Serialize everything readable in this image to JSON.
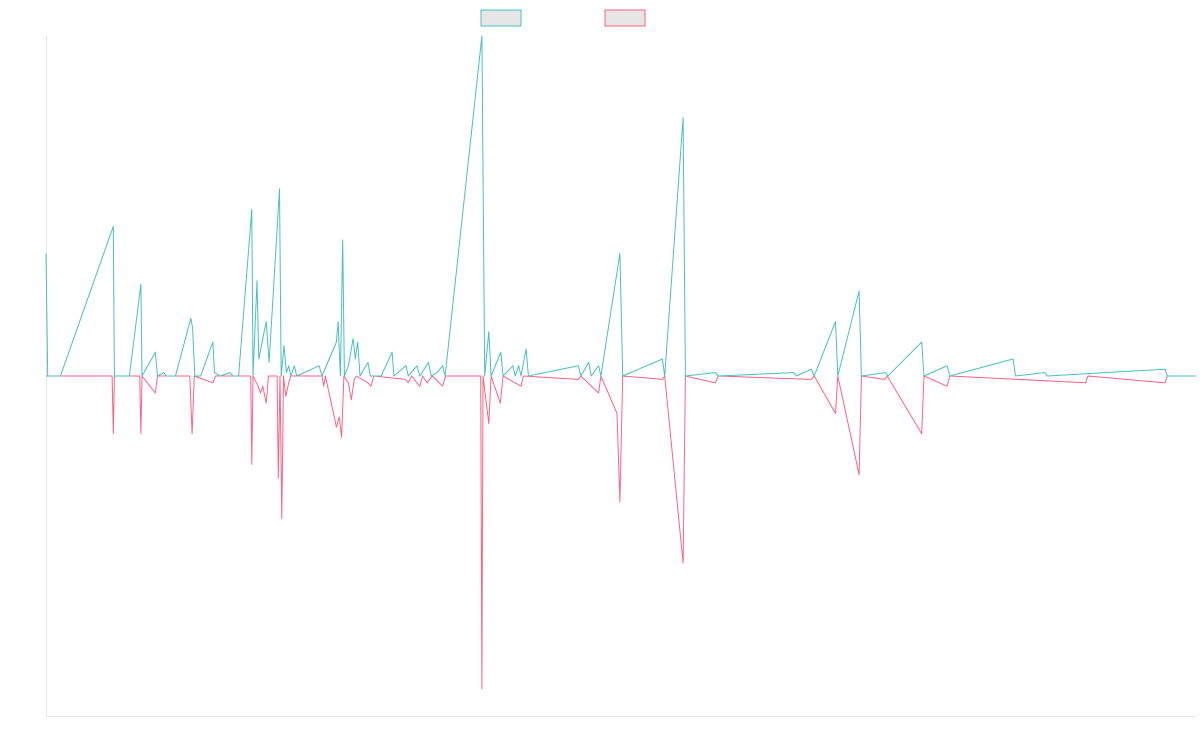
{
  "chart_data": {
    "type": "line",
    "title": "",
    "xlabel": "",
    "ylabel": "",
    "grid": false,
    "legend_placement": "top-center",
    "x_range": [
      0,
      200
    ],
    "ylim": [
      -1,
      1
    ],
    "colors": {
      "series_a": "#4bc0c0",
      "series_b": "#ff6384",
      "legend_fill": "#e6e6e6",
      "axis": "#e6e6e6"
    },
    "series": [
      {
        "points": [
          [
            0,
            0.36
          ],
          [
            0.3,
            0
          ],
          [
            2.5,
            0
          ],
          [
            11.7,
            0.44
          ],
          [
            11.9,
            0
          ],
          [
            14.5,
            0
          ],
          [
            16.5,
            0.27
          ],
          [
            16.7,
            0
          ],
          [
            19,
            0.07
          ],
          [
            19.4,
            0
          ],
          [
            20.5,
            0.01
          ],
          [
            20.9,
            0
          ],
          [
            22.5,
            0
          ],
          [
            25.2,
            0.17
          ],
          [
            25.5,
            0.14
          ],
          [
            25.9,
            0
          ],
          [
            26.9,
            0
          ],
          [
            29,
            0.1
          ],
          [
            29.3,
            0.01
          ],
          [
            30.3,
            0
          ],
          [
            32,
            0.01
          ],
          [
            32.5,
            0
          ],
          [
            33.5,
            0
          ],
          [
            35.8,
            0.49
          ],
          [
            36,
            0
          ],
          [
            36.7,
            0.28
          ],
          [
            37,
            0.05
          ],
          [
            37.7,
            0.11
          ],
          [
            38.3,
            0.16
          ],
          [
            38.8,
            0.04
          ],
          [
            40.6,
            0.55
          ],
          [
            40.9,
            0
          ],
          [
            41.4,
            0.09
          ],
          [
            41.8,
            0.01
          ],
          [
            42.2,
            0.03
          ],
          [
            42.6,
            0
          ],
          [
            43.2,
            0.03
          ],
          [
            43.6,
            0
          ],
          [
            47.5,
            0.03
          ],
          [
            48,
            0
          ],
          [
            50.5,
            0.1
          ],
          [
            50.8,
            0.16
          ],
          [
            51.2,
            0
          ],
          [
            51.6,
            0.4
          ],
          [
            51.9,
            0
          ],
          [
            52.6,
            0.03
          ],
          [
            53.4,
            0.11
          ],
          [
            53.8,
            0.05
          ],
          [
            54.2,
            0.1
          ],
          [
            54.6,
            0
          ],
          [
            56,
            0.04
          ],
          [
            56.4,
            0
          ],
          [
            58.3,
            0
          ],
          [
            60.2,
            0.07
          ],
          [
            60.5,
            0
          ],
          [
            62.6,
            0.03
          ],
          [
            63,
            0
          ],
          [
            64.5,
            0.03
          ],
          [
            65,
            0
          ],
          [
            66.5,
            0.04
          ],
          [
            67,
            0
          ],
          [
            68,
            0.01
          ],
          [
            69,
            0.03
          ],
          [
            69.4,
            0
          ],
          [
            75.8,
            1
          ],
          [
            76.3,
            0
          ],
          [
            77,
            0.13
          ],
          [
            77.4,
            0
          ],
          [
            79.1,
            0.07
          ],
          [
            79.5,
            0
          ],
          [
            81.2,
            0.03
          ],
          [
            81.6,
            0
          ],
          [
            82.2,
            0.03
          ],
          [
            82.6,
            0
          ],
          [
            83.5,
            0.08
          ],
          [
            83.9,
            0
          ],
          [
            92.6,
            0.03
          ],
          [
            93,
            0
          ],
          [
            94.4,
            0.04
          ],
          [
            94.8,
            0
          ],
          [
            96.1,
            0.03
          ],
          [
            96.5,
            0
          ],
          [
            99.8,
            0.36
          ],
          [
            100.3,
            0
          ],
          [
            107.2,
            0.05
          ],
          [
            107.6,
            0
          ],
          [
            110.8,
            0.76
          ],
          [
            111.2,
            0
          ],
          [
            116.4,
            0.01
          ],
          [
            116.9,
            0
          ],
          [
            130.1,
            0.01
          ],
          [
            130.5,
            0
          ],
          [
            133.1,
            0.02
          ],
          [
            133.6,
            0
          ],
          [
            137.3,
            0.16
          ],
          [
            137.7,
            0
          ],
          [
            141.4,
            0.25
          ],
          [
            141.8,
            0
          ],
          [
            146,
            0.01
          ],
          [
            146.4,
            0
          ],
          [
            152.3,
            0.1
          ],
          [
            152.7,
            0
          ],
          [
            156.7,
            0.03
          ],
          [
            157.2,
            0
          ],
          [
            168.2,
            0.05
          ],
          [
            168.6,
            0
          ],
          [
            173.7,
            0.01
          ],
          [
            174.1,
            0
          ],
          [
            194.6,
            0.02
          ],
          [
            195,
            0
          ],
          [
            200,
            0
          ]
        ]
      },
      {
        "points": [
          [
            0,
            0
          ],
          [
            11.5,
            0
          ],
          [
            11.7,
            -0.17
          ],
          [
            11.9,
            0
          ],
          [
            16.3,
            0
          ],
          [
            16.5,
            -0.17
          ],
          [
            16.7,
            0
          ],
          [
            19,
            -0.05
          ],
          [
            19.4,
            0
          ],
          [
            25,
            0
          ],
          [
            25.4,
            -0.17
          ],
          [
            25.8,
            0
          ],
          [
            29,
            -0.02
          ],
          [
            29.5,
            0
          ],
          [
            35.6,
            0
          ],
          [
            35.8,
            -0.26
          ],
          [
            36,
            0
          ],
          [
            36.9,
            -0.03
          ],
          [
            37.3,
            -0.05
          ],
          [
            37.7,
            -0.03
          ],
          [
            38.3,
            -0.08
          ],
          [
            38.7,
            0
          ],
          [
            40.2,
            0
          ],
          [
            40.4,
            -0.3
          ],
          [
            40.7,
            0
          ],
          [
            41,
            -0.42
          ],
          [
            41.3,
            0
          ],
          [
            41.7,
            -0.06
          ],
          [
            42.2,
            -0.02
          ],
          [
            42.6,
            0
          ],
          [
            48,
            0
          ],
          [
            48.3,
            -0.03
          ],
          [
            48.6,
            0
          ],
          [
            50.5,
            -0.15
          ],
          [
            51,
            -0.12
          ],
          [
            51.4,
            -0.18
          ],
          [
            51.8,
            0
          ],
          [
            52.6,
            -0.02
          ],
          [
            53.1,
            -0.07
          ],
          [
            53.6,
            -0.01
          ],
          [
            54,
            0
          ],
          [
            56,
            -0.02
          ],
          [
            56.5,
            -0.03
          ],
          [
            57,
            0
          ],
          [
            62.5,
            -0.01
          ],
          [
            63,
            -0.02
          ],
          [
            63.6,
            0
          ],
          [
            64.5,
            -0.02
          ],
          [
            65,
            -0.03
          ],
          [
            65.5,
            0
          ],
          [
            66.3,
            -0.02
          ],
          [
            66.7,
            -0.01
          ],
          [
            67.2,
            0
          ],
          [
            69,
            -0.03
          ],
          [
            69.5,
            0
          ],
          [
            75.6,
            0
          ],
          [
            75.8,
            -0.92
          ],
          [
            76,
            0
          ],
          [
            77,
            -0.14
          ],
          [
            77.4,
            0
          ],
          [
            79,
            -0.08
          ],
          [
            79.5,
            0
          ],
          [
            82.6,
            -0.03
          ],
          [
            83,
            0
          ],
          [
            92.6,
            -0.01
          ],
          [
            93,
            0
          ],
          [
            96.1,
            -0.05
          ],
          [
            96.5,
            0
          ],
          [
            99.3,
            -0.11
          ],
          [
            99.8,
            -0.37
          ],
          [
            100.3,
            0
          ],
          [
            107.2,
            -0.01
          ],
          [
            107.6,
            0
          ],
          [
            110.8,
            -0.55
          ],
          [
            111.2,
            0
          ],
          [
            116.4,
            -0.02
          ],
          [
            116.9,
            0
          ],
          [
            133.1,
            -0.01
          ],
          [
            133.6,
            0
          ],
          [
            137.3,
            -0.11
          ],
          [
            137.7,
            0
          ],
          [
            141.4,
            -0.29
          ],
          [
            141.8,
            0
          ],
          [
            145.8,
            -0.01
          ],
          [
            146.3,
            0
          ],
          [
            152.3,
            -0.17
          ],
          [
            152.7,
            0
          ],
          [
            156.7,
            -0.03
          ],
          [
            157.2,
            0
          ],
          [
            180.8,
            -0.02
          ],
          [
            181.2,
            0
          ],
          [
            194.6,
            -0.02
          ],
          [
            195,
            0
          ],
          [
            200,
            0
          ]
        ]
      }
    ]
  }
}
